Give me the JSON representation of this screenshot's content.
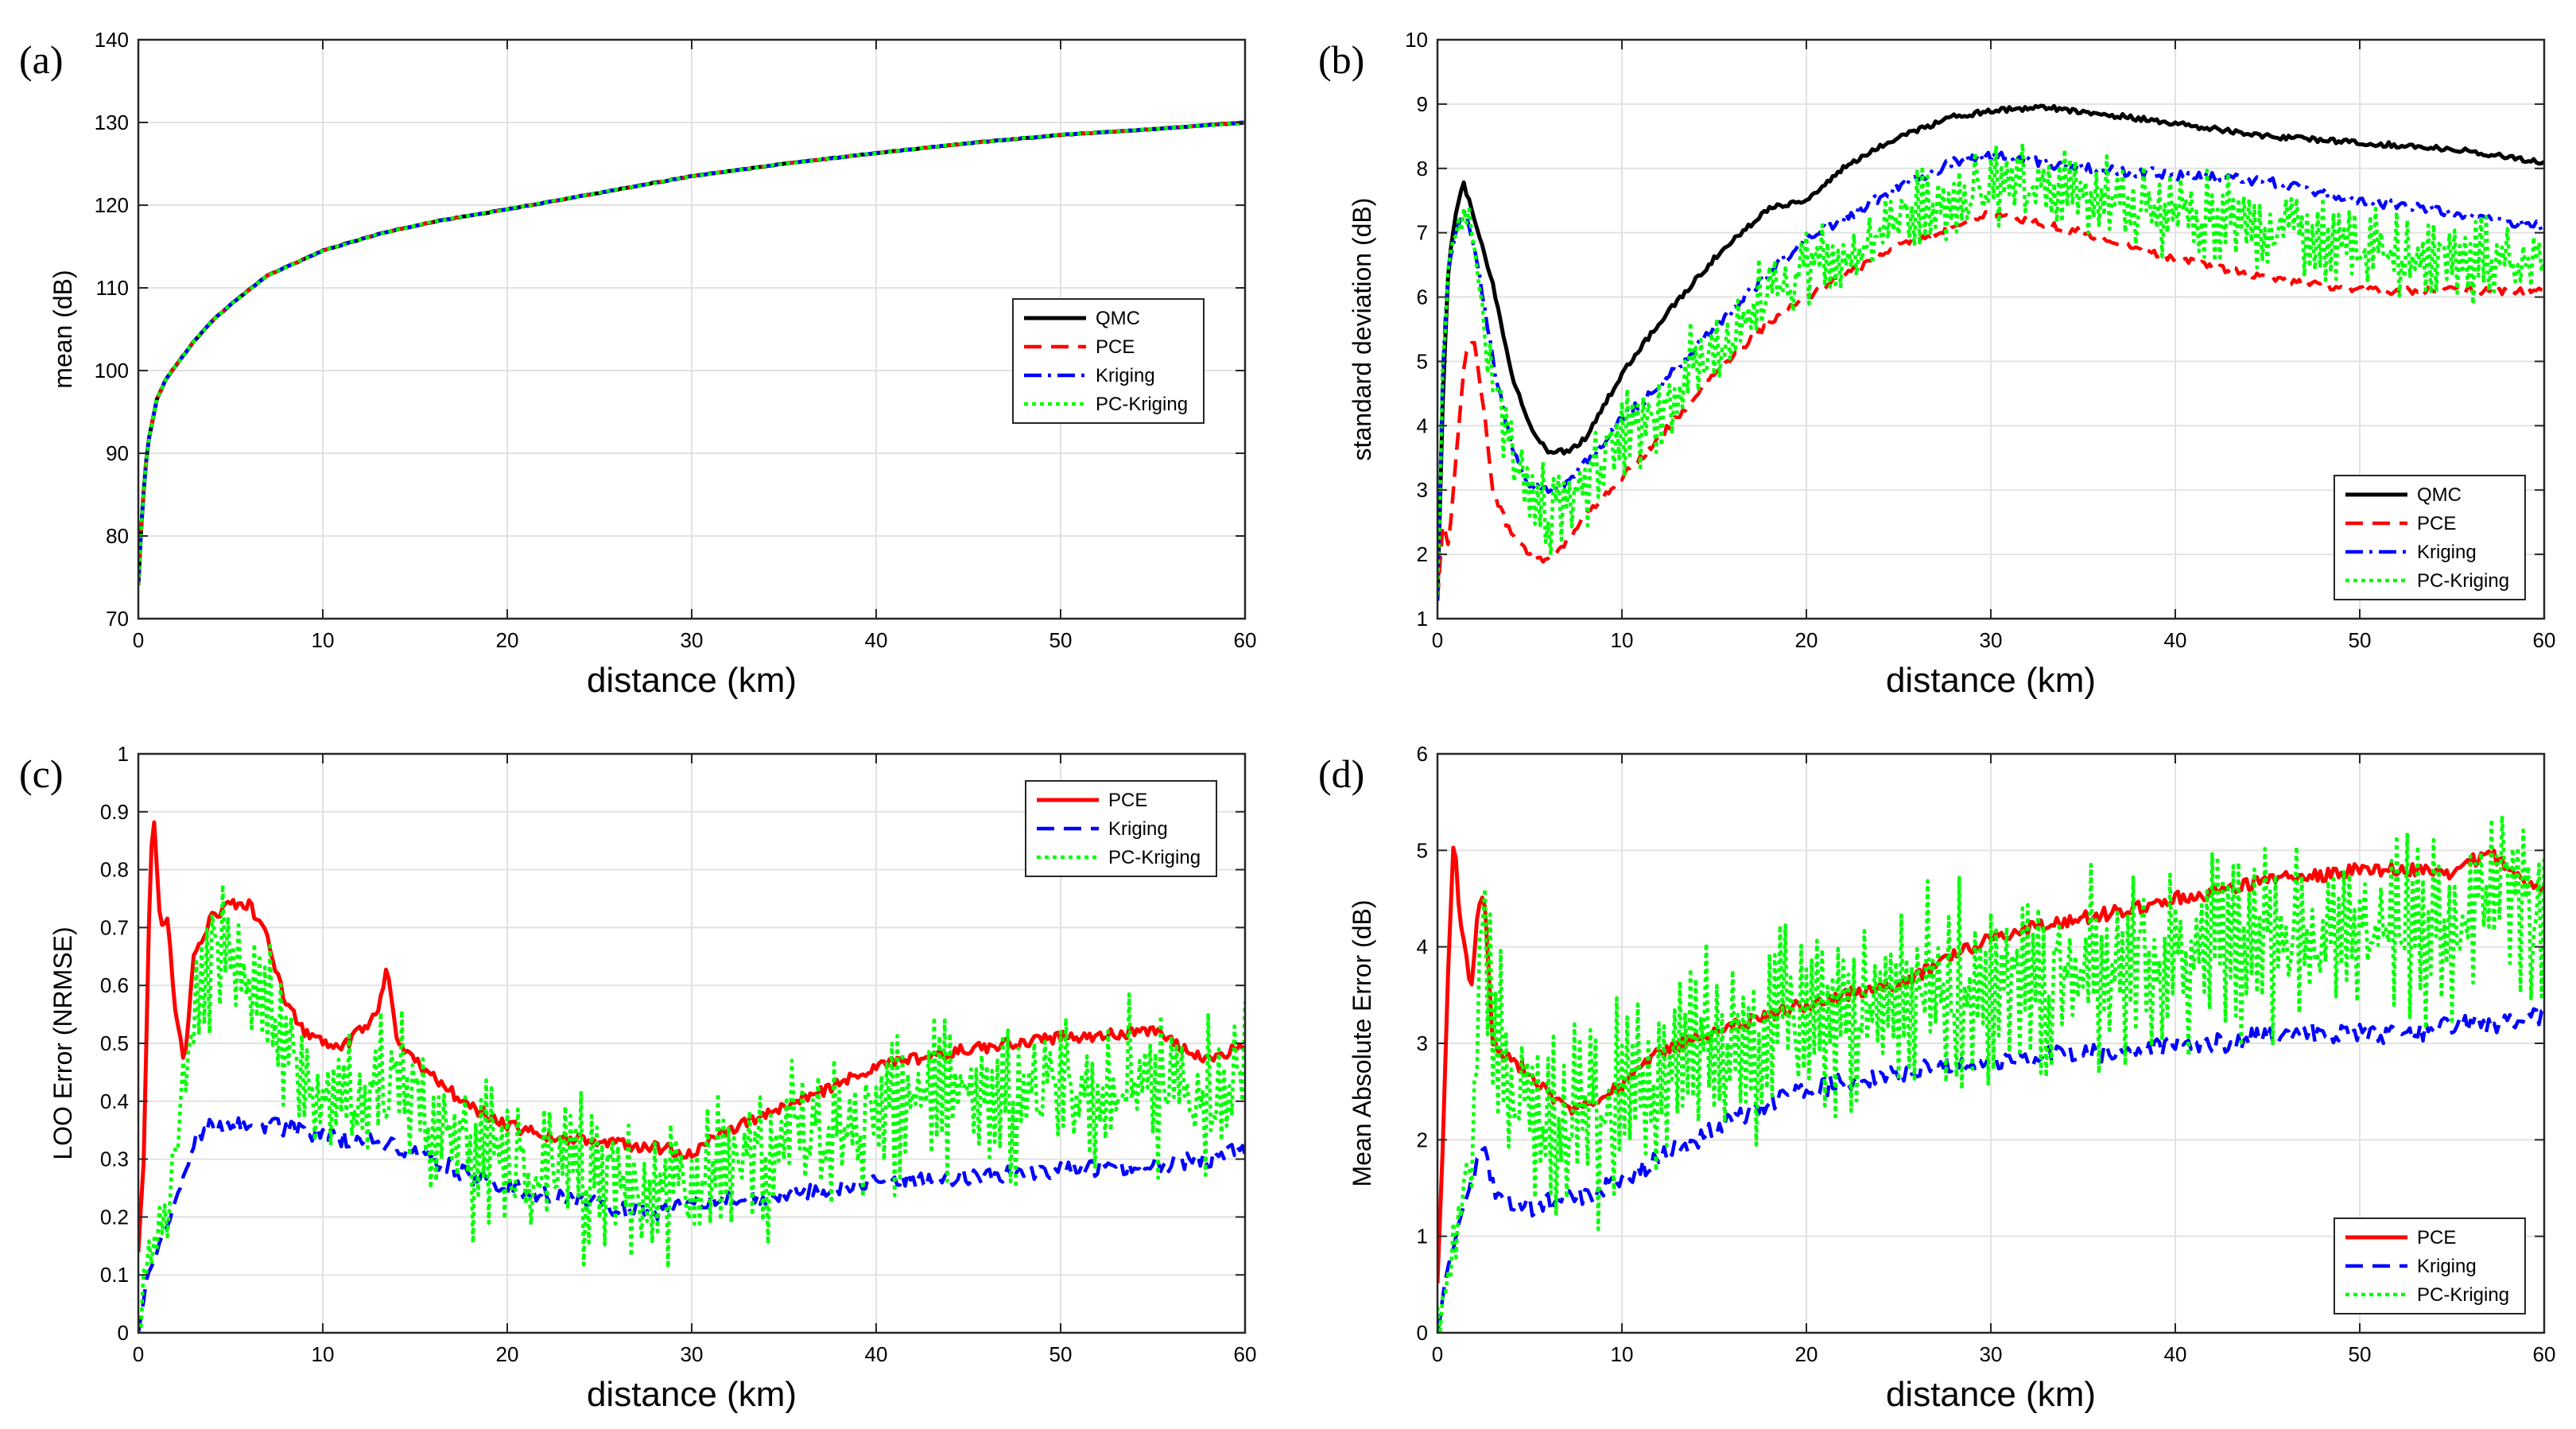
{
  "chart_data": [
    {
      "panel": "(a)",
      "type": "line",
      "xlabel": "distance (km)",
      "ylabel": "mean (dB)",
      "xlim": [
        0,
        60
      ],
      "ylim": [
        70,
        140
      ],
      "xticks": [
        0,
        10,
        20,
        30,
        40,
        50,
        60
      ],
      "yticks": [
        70,
        80,
        90,
        100,
        110,
        120,
        130,
        140
      ],
      "grid": true,
      "legend_position": "middle-right",
      "series": [
        {
          "name": "QMC",
          "color": "#000000",
          "style": "solid",
          "x": [
            0,
            0.2,
            0.5,
            1,
            1.5,
            2,
            3,
            4,
            5,
            7,
            10,
            13,
            16,
            20,
            25,
            30,
            35,
            40,
            45,
            50,
            55,
            60
          ],
          "y": [
            74,
            83,
            91,
            96.5,
            99,
            100.5,
            103.5,
            106,
            108,
            111.5,
            114.5,
            116.5,
            118,
            119.5,
            121.5,
            123.5,
            125,
            126.3,
            127.5,
            128.5,
            129.2,
            130
          ]
        },
        {
          "name": "PCE",
          "color": "#ff0000",
          "style": "dashed",
          "x": [
            0,
            0.2,
            0.5,
            1,
            1.5,
            2,
            3,
            4,
            5,
            7,
            10,
            13,
            16,
            20,
            25,
            30,
            35,
            40,
            45,
            50,
            55,
            60
          ],
          "y": [
            74,
            83,
            91,
            96.5,
            99,
            100.5,
            103.5,
            106,
            108,
            111.5,
            114.5,
            116.5,
            118,
            119.5,
            121.5,
            123.5,
            125,
            126.3,
            127.5,
            128.5,
            129.2,
            130
          ]
        },
        {
          "name": "Kriging",
          "color": "#0000ff",
          "style": "dashdot",
          "x": [
            0,
            0.2,
            0.5,
            1,
            1.5,
            2,
            3,
            4,
            5,
            7,
            10,
            13,
            16,
            20,
            25,
            30,
            35,
            40,
            45,
            50,
            55,
            60
          ],
          "y": [
            74,
            83,
            91,
            96.5,
            99,
            100.5,
            103.5,
            106,
            108,
            111.5,
            114.5,
            116.5,
            118,
            119.5,
            121.5,
            123.5,
            125,
            126.3,
            127.5,
            128.5,
            129.2,
            130
          ]
        },
        {
          "name": "PC-Kriging",
          "color": "#00ff00",
          "style": "dotted",
          "x": [
            0,
            0.2,
            0.5,
            1,
            1.5,
            2,
            3,
            4,
            5,
            7,
            10,
            13,
            16,
            20,
            25,
            30,
            35,
            40,
            45,
            50,
            55,
            60
          ],
          "y": [
            74,
            83,
            91,
            96.5,
            99,
            100.5,
            103.5,
            106,
            108,
            111.5,
            114.5,
            116.5,
            118,
            119.5,
            121.5,
            123.5,
            125,
            126.3,
            127.5,
            128.5,
            129.2,
            130
          ]
        }
      ]
    },
    {
      "panel": "(b)",
      "type": "line",
      "xlabel": "distance (km)",
      "ylabel": "standard deviation (dB)",
      "xlim": [
        0,
        60
      ],
      "ylim": [
        1,
        10
      ],
      "xticks": [
        0,
        10,
        20,
        30,
        40,
        50,
        60
      ],
      "yticks": [
        1,
        2,
        3,
        4,
        5,
        6,
        7,
        8,
        9,
        10
      ],
      "grid": true,
      "legend_position": "bottom-right",
      "series": [
        {
          "name": "QMC",
          "color": "#000000",
          "style": "solid",
          "x": [
            0,
            0.3,
            0.6,
            1,
            1.4,
            2,
            3,
            4,
            5,
            6,
            7,
            8,
            10,
            12,
            15,
            18,
            20,
            22,
            25,
            28,
            30,
            33,
            36,
            40,
            45,
            50,
            55,
            60
          ],
          "y": [
            1.3,
            4.5,
            6.5,
            7.3,
            7.8,
            7.2,
            6.2,
            4.8,
            4.0,
            3.6,
            3.6,
            3.8,
            4.8,
            5.6,
            6.6,
            7.4,
            7.5,
            8.0,
            8.5,
            8.8,
            8.9,
            8.95,
            8.85,
            8.7,
            8.5,
            8.4,
            8.3,
            8.1
          ]
        },
        {
          "name": "PCE",
          "color": "#ff0000",
          "style": "dashed",
          "x": [
            0,
            0.3,
            0.6,
            1,
            1.5,
            2,
            2.5,
            3,
            4,
            5,
            6,
            7,
            8,
            10,
            12,
            15,
            18,
            20,
            25,
            30,
            35,
            40,
            45,
            50,
            55,
            60
          ],
          "y": [
            1.3,
            2.5,
            2.1,
            3.5,
            5.1,
            5.3,
            4.3,
            3.0,
            2.3,
            2.0,
            1.9,
            2.2,
            2.6,
            3.2,
            3.8,
            4.8,
            5.6,
            6.0,
            6.8,
            7.3,
            7.0,
            6.6,
            6.3,
            6.1,
            6.1,
            6.1
          ]
        },
        {
          "name": "Kriging",
          "color": "#0000ff",
          "style": "dashdot",
          "x": [
            0,
            0.3,
            0.6,
            1,
            1.5,
            2,
            3,
            4,
            5,
            6,
            7,
            8,
            10,
            12,
            15,
            18,
            20,
            25,
            28,
            30,
            35,
            40,
            45,
            50,
            55,
            60
          ],
          "y": [
            1.3,
            5.0,
            6.5,
            7.0,
            7.4,
            6.8,
            5.0,
            3.7,
            3.1,
            3.0,
            3.1,
            3.4,
            4.1,
            4.6,
            5.5,
            6.4,
            6.9,
            7.7,
            8.1,
            8.2,
            8.0,
            7.9,
            7.8,
            7.5,
            7.3,
            7.1
          ]
        },
        {
          "name": "PC-Kriging",
          "color": "#00ff00",
          "style": "dotted",
          "x": [
            0,
            0.3,
            0.6,
            1,
            1.5,
            2,
            3,
            4,
            5,
            6,
            7,
            8,
            10,
            12,
            15,
            18,
            20,
            25,
            30,
            35,
            40,
            45,
            50,
            55,
            60
          ],
          "y": [
            1.3,
            5.0,
            6.5,
            7.0,
            7.3,
            6.6,
            4.8,
            3.6,
            2.9,
            2.7,
            2.9,
            3.2,
            3.8,
            4.3,
            5.2,
            6.0,
            6.4,
            7.2,
            7.7,
            7.6,
            7.3,
            7.0,
            6.8,
            6.6,
            6.5
          ]
        }
      ]
    },
    {
      "panel": "(c)",
      "type": "line",
      "xlabel": "distance (km)",
      "ylabel": "LOO Error (NRMSE)",
      "xlim": [
        0,
        60
      ],
      "ylim": [
        0,
        1
      ],
      "xticks": [
        0,
        10,
        20,
        30,
        40,
        50,
        60
      ],
      "yticks": [
        0,
        0.1,
        0.2,
        0.3,
        0.4,
        0.5,
        0.6,
        0.7,
        0.8,
        0.9,
        1
      ],
      "grid": true,
      "legend_position": "top-right",
      "series": [
        {
          "name": "PCE",
          "color": "#ff0000",
          "style": "solid",
          "x": [
            0,
            0.3,
            0.6,
            0.8,
            1.2,
            1.6,
            2,
            2.5,
            3,
            4,
            5,
            6,
            7,
            8,
            9,
            10,
            11,
            12,
            13,
            13.5,
            14,
            15,
            16,
            18,
            20,
            22,
            25,
            28,
            30,
            32,
            35,
            38,
            40,
            45,
            50,
            55,
            58,
            60
          ],
          "y": [
            0.14,
            0.3,
            0.75,
            0.91,
            0.7,
            0.71,
            0.55,
            0.47,
            0.65,
            0.72,
            0.74,
            0.74,
            0.68,
            0.57,
            0.52,
            0.5,
            0.49,
            0.52,
            0.55,
            0.63,
            0.5,
            0.47,
            0.44,
            0.39,
            0.36,
            0.34,
            0.33,
            0.32,
            0.31,
            0.35,
            0.39,
            0.43,
            0.46,
            0.49,
            0.51,
            0.52,
            0.47,
            0.5
          ]
        },
        {
          "name": "Kriging",
          "color": "#0000ff",
          "style": "dashed",
          "x": [
            0,
            0.5,
            1,
            1.5,
            2,
            2.5,
            3,
            4,
            5,
            7,
            10,
            13,
            16,
            18,
            20,
            22,
            25,
            28,
            30,
            32,
            35,
            38,
            40,
            45,
            50,
            55,
            58,
            60
          ],
          "y": [
            0,
            0.1,
            0.14,
            0.18,
            0.22,
            0.28,
            0.33,
            0.36,
            0.36,
            0.36,
            0.34,
            0.33,
            0.3,
            0.27,
            0.25,
            0.24,
            0.22,
            0.21,
            0.22,
            0.23,
            0.24,
            0.25,
            0.26,
            0.27,
            0.28,
            0.29,
            0.3,
            0.32
          ]
        },
        {
          "name": "PC-Kriging",
          "color": "#00ff00",
          "style": "dotted",
          "x": [
            0,
            0.5,
            1,
            1.5,
            2,
            2.5,
            3,
            3.5,
            4,
            5,
            6,
            7,
            8,
            10,
            12,
            14,
            16,
            18,
            20,
            22,
            25,
            28,
            30,
            32,
            35,
            38,
            40,
            45,
            50,
            55,
            58,
            60
          ],
          "y": [
            0,
            0.12,
            0.16,
            0.22,
            0.3,
            0.45,
            0.55,
            0.63,
            0.66,
            0.68,
            0.62,
            0.56,
            0.5,
            0.45,
            0.43,
            0.42,
            0.36,
            0.32,
            0.3,
            0.28,
            0.27,
            0.26,
            0.27,
            0.3,
            0.33,
            0.36,
            0.38,
            0.4,
            0.42,
            0.43,
            0.4,
            0.42
          ]
        }
      ]
    },
    {
      "panel": "(d)",
      "type": "line",
      "xlabel": "distance (km)",
      "ylabel": "Mean Absolute Error (dB)",
      "xlim": [
        0,
        60
      ],
      "ylim": [
        0,
        6
      ],
      "xticks": [
        0,
        10,
        20,
        30,
        40,
        50,
        60
      ],
      "yticks": [
        0,
        1,
        2,
        3,
        4,
        5,
        6
      ],
      "grid": true,
      "legend_position": "bottom-right",
      "series": [
        {
          "name": "PCE",
          "color": "#ff0000",
          "style": "solid",
          "x": [
            0,
            0.3,
            0.6,
            0.9,
            1.2,
            1.5,
            1.8,
            2.1,
            2.5,
            3,
            4,
            5,
            6,
            7,
            8,
            9,
            10,
            12,
            15,
            18,
            20,
            22,
            25,
            28,
            30,
            32,
            35,
            38,
            40,
            43,
            45,
            48,
            50,
            53,
            55,
            57,
            58,
            60
          ],
          "y": [
            0.5,
            2.0,
            3.9,
            5.2,
            4.3,
            4.0,
            3.5,
            4.2,
            4.6,
            3.0,
            2.8,
            2.7,
            2.5,
            2.3,
            2.4,
            2.45,
            2.55,
            2.9,
            3.1,
            3.3,
            3.4,
            3.5,
            3.6,
            3.9,
            4.1,
            4.2,
            4.3,
            4.4,
            4.5,
            4.6,
            4.7,
            4.75,
            4.8,
            4.8,
            4.75,
            5.0,
            4.8,
            4.6
          ]
        },
        {
          "name": "Kriging",
          "color": "#0000ff",
          "style": "dashed",
          "x": [
            0,
            0.5,
            1,
            1.5,
            2,
            2.5,
            3,
            4,
            5,
            6,
            8,
            10,
            12,
            15,
            18,
            20,
            22,
            25,
            28,
            30,
            32,
            35,
            38,
            40,
            43,
            45,
            48,
            50,
            53,
            55,
            58,
            60
          ],
          "y": [
            0,
            0.6,
            1.0,
            1.4,
            1.7,
            1.9,
            1.5,
            1.3,
            1.3,
            1.35,
            1.4,
            1.6,
            1.8,
            2.1,
            2.4,
            2.5,
            2.6,
            2.7,
            2.8,
            2.8,
            2.85,
            2.9,
            2.9,
            3.0,
            3.0,
            3.1,
            3.1,
            3.1,
            3.1,
            3.2,
            3.2,
            3.3
          ]
        },
        {
          "name": "PC-Kriging",
          "color": "#00ff00",
          "style": "dotted",
          "x": [
            0,
            0.5,
            1,
            1.5,
            2,
            2.5,
            3,
            4,
            5,
            6,
            8,
            10,
            12,
            15,
            18,
            20,
            22,
            25,
            28,
            30,
            32,
            35,
            38,
            40,
            43,
            45,
            48,
            50,
            53,
            55,
            57,
            60
          ],
          "y": [
            0,
            0.5,
            1.0,
            1.6,
            2.3,
            4.6,
            3.0,
            2.5,
            2.2,
            2.0,
            2.1,
            2.4,
            2.6,
            2.9,
            3.1,
            3.2,
            3.3,
            3.4,
            3.5,
            3.6,
            3.7,
            3.8,
            3.9,
            4.0,
            4.0,
            4.1,
            4.1,
            4.1,
            4.2,
            4.2,
            4.6,
            4.3
          ]
        }
      ]
    }
  ]
}
